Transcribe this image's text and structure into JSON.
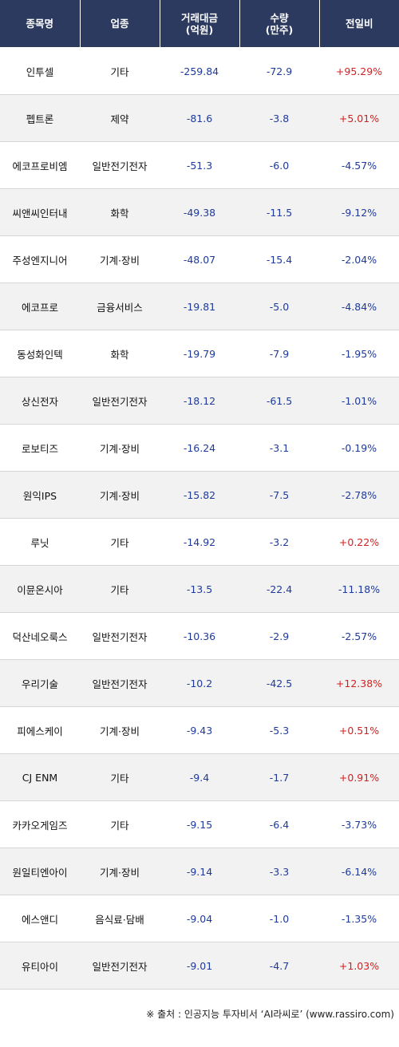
{
  "header": {
    "name": "종목명",
    "sector": "업종",
    "amount_line1": "거래대금",
    "amount_line2": "(억원)",
    "volume_line1": "수량",
    "volume_line2": "(만주)",
    "change": "전일비"
  },
  "rows": [
    {
      "name": "인투셀",
      "sector": "기타",
      "amount": "-259.84",
      "volume": "-72.9",
      "change": "+95.29%",
      "dir": "up"
    },
    {
      "name": "펩트론",
      "sector": "제약",
      "amount": "-81.6",
      "volume": "-3.8",
      "change": "+5.01%",
      "dir": "up"
    },
    {
      "name": "에코프로비엠",
      "sector": "일반전기전자",
      "amount": "-51.3",
      "volume": "-6.0",
      "change": "-4.57%",
      "dir": "down"
    },
    {
      "name": "씨앤씨인터내",
      "sector": "화학",
      "amount": "-49.38",
      "volume": "-11.5",
      "change": "-9.12%",
      "dir": "down"
    },
    {
      "name": "주성엔지니어",
      "sector": "기계·장비",
      "amount": "-48.07",
      "volume": "-15.4",
      "change": "-2.04%",
      "dir": "down"
    },
    {
      "name": "에코프로",
      "sector": "금융서비스",
      "amount": "-19.81",
      "volume": "-5.0",
      "change": "-4.84%",
      "dir": "down"
    },
    {
      "name": "동성화인텍",
      "sector": "화학",
      "amount": "-19.79",
      "volume": "-7.9",
      "change": "-1.95%",
      "dir": "down"
    },
    {
      "name": "상신전자",
      "sector": "일반전기전자",
      "amount": "-18.12",
      "volume": "-61.5",
      "change": "-1.01%",
      "dir": "down"
    },
    {
      "name": "로보티즈",
      "sector": "기계·장비",
      "amount": "-16.24",
      "volume": "-3.1",
      "change": "-0.19%",
      "dir": "down"
    },
    {
      "name": "원익IPS",
      "sector": "기계·장비",
      "amount": "-15.82",
      "volume": "-7.5",
      "change": "-2.78%",
      "dir": "down"
    },
    {
      "name": "루닛",
      "sector": "기타",
      "amount": "-14.92",
      "volume": "-3.2",
      "change": "+0.22%",
      "dir": "up"
    },
    {
      "name": "이뮨온시아",
      "sector": "기타",
      "amount": "-13.5",
      "volume": "-22.4",
      "change": "-11.18%",
      "dir": "down"
    },
    {
      "name": "덕산네오룩스",
      "sector": "일반전기전자",
      "amount": "-10.36",
      "volume": "-2.9",
      "change": "-2.57%",
      "dir": "down"
    },
    {
      "name": "우리기술",
      "sector": "일반전기전자",
      "amount": "-10.2",
      "volume": "-42.5",
      "change": "+12.38%",
      "dir": "up"
    },
    {
      "name": "피에스케이",
      "sector": "기계·장비",
      "amount": "-9.43",
      "volume": "-5.3",
      "change": "+0.51%",
      "dir": "up"
    },
    {
      "name": "CJ ENM",
      "sector": "기타",
      "amount": "-9.4",
      "volume": "-1.7",
      "change": "+0.91%",
      "dir": "up"
    },
    {
      "name": "카카오게임즈",
      "sector": "기타",
      "amount": "-9.15",
      "volume": "-6.4",
      "change": "-3.73%",
      "dir": "down"
    },
    {
      "name": "원일티엔아이",
      "sector": "기계·장비",
      "amount": "-9.14",
      "volume": "-3.3",
      "change": "-6.14%",
      "dir": "down"
    },
    {
      "name": "에스앤디",
      "sector": "음식료·담배",
      "amount": "-9.04",
      "volume": "-1.0",
      "change": "-1.35%",
      "dir": "down"
    },
    {
      "name": "유티아이",
      "sector": "일반전기전자",
      "amount": "-9.01",
      "volume": "-4.7",
      "change": "+1.03%",
      "dir": "up"
    }
  ],
  "colors": {
    "header_bg": "#2d3a60",
    "up": "#d42020",
    "down": "#1f3a9a",
    "stripe": "#f2f2f2"
  },
  "source": "※ 출처 : 인공지능 투자비서 ‘AI라씨로’ (www.rassiro.com)"
}
